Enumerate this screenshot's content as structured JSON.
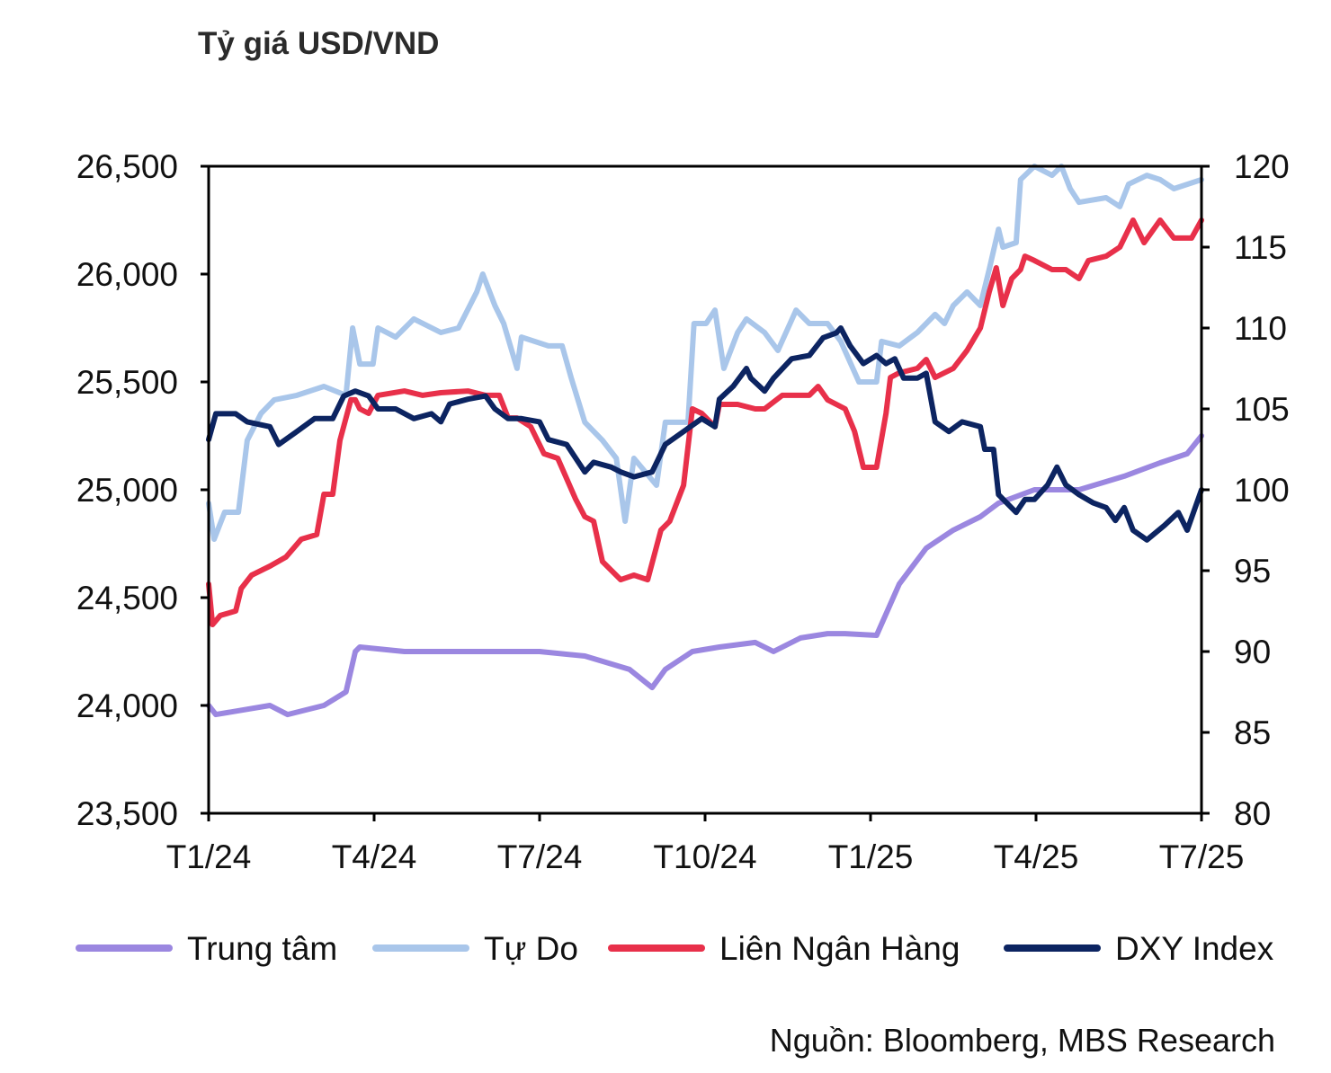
{
  "chart_data": {
    "type": "line",
    "title": "Tỷ giá USD/VND",
    "source": "Nguồn: Bloomberg, MBS Research",
    "x_unit": "months since T1/24",
    "x_ticks": [
      {
        "v": 0,
        "label": "T1/24"
      },
      {
        "v": 3,
        "label": "T4/24"
      },
      {
        "v": 6,
        "label": "T7/24"
      },
      {
        "v": 9,
        "label": "T10/24"
      },
      {
        "v": 12,
        "label": "T1/25"
      },
      {
        "v": 15,
        "label": "T4/25"
      },
      {
        "v": 18,
        "label": "T7/25"
      }
    ],
    "xlim": [
      0,
      18
    ],
    "y_left": {
      "ylim": [
        23500,
        26500
      ],
      "ticks": [
        {
          "v": 23500,
          "label": "23,500"
        },
        {
          "v": 24000,
          "label": "24,000"
        },
        {
          "v": 24500,
          "label": "24,500"
        },
        {
          "v": 25000,
          "label": "25,000"
        },
        {
          "v": 25500,
          "label": "25,500"
        },
        {
          "v": 26000,
          "label": "26,000"
        },
        {
          "v": 26500,
          "label": "26,500"
        }
      ]
    },
    "y_right": {
      "ylim": [
        80,
        120
      ],
      "ticks": [
        {
          "v": 80,
          "label": "80"
        },
        {
          "v": 85,
          "label": "85"
        },
        {
          "v": 90,
          "label": "90"
        },
        {
          "v": 95,
          "label": "95"
        },
        {
          "v": 100,
          "label": "100"
        },
        {
          "v": 105,
          "label": "105"
        },
        {
          "v": 110,
          "label": "110"
        },
        {
          "v": 115,
          "label": "115"
        },
        {
          "v": 120,
          "label": "120"
        }
      ]
    },
    "grid": false,
    "legend_position": "bottom",
    "series": [
      {
        "name": "Trung tâm",
        "axis": "left",
        "color": "#9b87e0",
        "points": [
          [
            0,
            24000
          ],
          [
            0.13,
            23958
          ],
          [
            1.11,
            24000
          ],
          [
            1.43,
            23958
          ],
          [
            2.09,
            24000
          ],
          [
            2.49,
            24063
          ],
          [
            2.66,
            24250
          ],
          [
            2.74,
            24271
          ],
          [
            3.55,
            24250
          ],
          [
            4.37,
            24250
          ],
          [
            6.0,
            24250
          ],
          [
            6.82,
            24229
          ],
          [
            7.63,
            24167
          ],
          [
            8.04,
            24083
          ],
          [
            8.28,
            24167
          ],
          [
            8.77,
            24250
          ],
          [
            9.26,
            24271
          ],
          [
            9.91,
            24292
          ],
          [
            10.24,
            24250
          ],
          [
            10.73,
            24313
          ],
          [
            11.22,
            24333
          ],
          [
            11.54,
            24333
          ],
          [
            12.11,
            24325
          ],
          [
            12.52,
            24563
          ],
          [
            13.01,
            24729
          ],
          [
            13.5,
            24813
          ],
          [
            13.99,
            24875
          ],
          [
            14.32,
            24938
          ],
          [
            14.97,
            25000
          ],
          [
            15.78,
            25000
          ],
          [
            16.6,
            25063
          ],
          [
            17.25,
            25125
          ],
          [
            17.74,
            25167
          ],
          [
            18,
            25250
          ]
        ]
      },
      {
        "name": "Tự Do",
        "axis": "left",
        "color": "#a9c6ea",
        "points": [
          [
            0,
            24937
          ],
          [
            0.1,
            24771
          ],
          [
            0.29,
            24896
          ],
          [
            0.54,
            24896
          ],
          [
            0.7,
            25229
          ],
          [
            0.95,
            25354
          ],
          [
            1.19,
            25417
          ],
          [
            1.6,
            25438
          ],
          [
            2.09,
            25479
          ],
          [
            2.49,
            25438
          ],
          [
            2.61,
            25750
          ],
          [
            2.74,
            25583
          ],
          [
            2.98,
            25583
          ],
          [
            3.07,
            25750
          ],
          [
            3.39,
            25708
          ],
          [
            3.72,
            25792
          ],
          [
            4.21,
            25729
          ],
          [
            4.53,
            25750
          ],
          [
            4.86,
            25917
          ],
          [
            4.97,
            26000
          ],
          [
            5.19,
            25854
          ],
          [
            5.35,
            25771
          ],
          [
            5.59,
            25563
          ],
          [
            5.67,
            25708
          ],
          [
            6.16,
            25667
          ],
          [
            6.41,
            25667
          ],
          [
            6.57,
            25521
          ],
          [
            6.82,
            25313
          ],
          [
            7.14,
            25229
          ],
          [
            7.39,
            25146
          ],
          [
            7.55,
            24854
          ],
          [
            7.71,
            25146
          ],
          [
            8.12,
            25021
          ],
          [
            8.28,
            25313
          ],
          [
            8.69,
            25313
          ],
          [
            8.8,
            25771
          ],
          [
            9.02,
            25771
          ],
          [
            9.18,
            25833
          ],
          [
            9.34,
            25563
          ],
          [
            9.59,
            25729
          ],
          [
            9.75,
            25792
          ],
          [
            10.08,
            25729
          ],
          [
            10.32,
            25646
          ],
          [
            10.65,
            25833
          ],
          [
            10.89,
            25771
          ],
          [
            11.22,
            25771
          ],
          [
            11.46,
            25688
          ],
          [
            11.79,
            25500
          ],
          [
            12.11,
            25500
          ],
          [
            12.2,
            25688
          ],
          [
            12.52,
            25667
          ],
          [
            12.85,
            25729
          ],
          [
            13.17,
            25813
          ],
          [
            13.34,
            25771
          ],
          [
            13.5,
            25854
          ],
          [
            13.75,
            25917
          ],
          [
            13.99,
            25854
          ],
          [
            14.15,
            26021
          ],
          [
            14.32,
            26208
          ],
          [
            14.4,
            26125
          ],
          [
            14.64,
            26146
          ],
          [
            14.72,
            26438
          ],
          [
            14.97,
            26500
          ],
          [
            15.29,
            26458
          ],
          [
            15.46,
            26500
          ],
          [
            15.62,
            26396
          ],
          [
            15.78,
            26333
          ],
          [
            16.27,
            26354
          ],
          [
            16.52,
            26313
          ],
          [
            16.68,
            26417
          ],
          [
            17.01,
            26458
          ],
          [
            17.25,
            26438
          ],
          [
            17.5,
            26396
          ],
          [
            18,
            26438
          ]
        ]
      },
      {
        "name": "Liên Ngân Hàng",
        "axis": "left",
        "color": "#e8304a",
        "points": [
          [
            0,
            24563
          ],
          [
            0.07,
            24375
          ],
          [
            0.21,
            24417
          ],
          [
            0.49,
            24438
          ],
          [
            0.59,
            24542
          ],
          [
            0.78,
            24604
          ],
          [
            1.11,
            24646
          ],
          [
            1.4,
            24688
          ],
          [
            1.68,
            24771
          ],
          [
            1.96,
            24792
          ],
          [
            2.09,
            24979
          ],
          [
            2.25,
            24979
          ],
          [
            2.38,
            25229
          ],
          [
            2.58,
            25417
          ],
          [
            2.66,
            25417
          ],
          [
            2.74,
            25375
          ],
          [
            2.9,
            25354
          ],
          [
            3.07,
            25438
          ],
          [
            3.55,
            25458
          ],
          [
            3.88,
            25438
          ],
          [
            4.21,
            25450
          ],
          [
            4.7,
            25458
          ],
          [
            5.02,
            25438
          ],
          [
            5.27,
            25438
          ],
          [
            5.43,
            25333
          ],
          [
            5.59,
            25333
          ],
          [
            5.84,
            25292
          ],
          [
            6.08,
            25167
          ],
          [
            6.33,
            25146
          ],
          [
            6.65,
            24958
          ],
          [
            6.82,
            24875
          ],
          [
            6.98,
            24854
          ],
          [
            7.14,
            24667
          ],
          [
            7.47,
            24583
          ],
          [
            7.71,
            24604
          ],
          [
            7.96,
            24583
          ],
          [
            8.2,
            24813
          ],
          [
            8.36,
            24854
          ],
          [
            8.61,
            25021
          ],
          [
            8.77,
            25375
          ],
          [
            8.94,
            25354
          ],
          [
            9.18,
            25292
          ],
          [
            9.26,
            25396
          ],
          [
            9.59,
            25396
          ],
          [
            9.91,
            25375
          ],
          [
            10.08,
            25375
          ],
          [
            10.4,
            25438
          ],
          [
            10.89,
            25438
          ],
          [
            11.05,
            25479
          ],
          [
            11.22,
            25417
          ],
          [
            11.54,
            25375
          ],
          [
            11.71,
            25271
          ],
          [
            11.87,
            25104
          ],
          [
            12.11,
            25104
          ],
          [
            12.28,
            25354
          ],
          [
            12.36,
            25521
          ],
          [
            12.52,
            25542
          ],
          [
            12.85,
            25563
          ],
          [
            13.01,
            25604
          ],
          [
            13.17,
            25521
          ],
          [
            13.5,
            25563
          ],
          [
            13.75,
            25646
          ],
          [
            13.99,
            25750
          ],
          [
            14.15,
            25917
          ],
          [
            14.28,
            26029
          ],
          [
            14.4,
            25854
          ],
          [
            14.56,
            25979
          ],
          [
            14.72,
            26021
          ],
          [
            14.8,
            26083
          ],
          [
            14.97,
            26063
          ],
          [
            15.29,
            26021
          ],
          [
            15.54,
            26021
          ],
          [
            15.78,
            25979
          ],
          [
            15.95,
            26063
          ],
          [
            16.27,
            26083
          ],
          [
            16.52,
            26125
          ],
          [
            16.76,
            26250
          ],
          [
            16.96,
            26146
          ],
          [
            17.25,
            26250
          ],
          [
            17.5,
            26167
          ],
          [
            17.82,
            26167
          ],
          [
            18,
            26250
          ]
        ]
      },
      {
        "name": "DXY Index",
        "axis": "right",
        "color": "#0c2461",
        "points": [
          [
            0,
            103.1
          ],
          [
            0.13,
            104.7
          ],
          [
            0.49,
            104.7
          ],
          [
            0.7,
            104.2
          ],
          [
            1.11,
            103.9
          ],
          [
            1.27,
            102.8
          ],
          [
            1.6,
            103.6
          ],
          [
            1.92,
            104.4
          ],
          [
            2.25,
            104.4
          ],
          [
            2.45,
            105.8
          ],
          [
            2.66,
            106.1
          ],
          [
            2.9,
            105.8
          ],
          [
            3.07,
            105.0
          ],
          [
            3.39,
            105.0
          ],
          [
            3.72,
            104.4
          ],
          [
            4.04,
            104.7
          ],
          [
            4.21,
            104.2
          ],
          [
            4.37,
            105.3
          ],
          [
            4.7,
            105.6
          ],
          [
            5.02,
            105.8
          ],
          [
            5.19,
            105.0
          ],
          [
            5.43,
            104.4
          ],
          [
            5.67,
            104.4
          ],
          [
            6.0,
            104.2
          ],
          [
            6.16,
            103.1
          ],
          [
            6.49,
            102.8
          ],
          [
            6.82,
            101.1
          ],
          [
            6.98,
            101.7
          ],
          [
            7.3,
            101.4
          ],
          [
            7.47,
            101.1
          ],
          [
            7.71,
            100.8
          ],
          [
            8.04,
            101.1
          ],
          [
            8.28,
            102.8
          ],
          [
            8.61,
            103.6
          ],
          [
            8.94,
            104.4
          ],
          [
            9.18,
            103.9
          ],
          [
            9.26,
            105.6
          ],
          [
            9.51,
            106.4
          ],
          [
            9.75,
            107.5
          ],
          [
            9.83,
            106.9
          ],
          [
            10.08,
            106.1
          ],
          [
            10.24,
            106.9
          ],
          [
            10.57,
            108.1
          ],
          [
            10.89,
            108.3
          ],
          [
            11.14,
            109.4
          ],
          [
            11.38,
            109.7
          ],
          [
            11.46,
            110.0
          ],
          [
            11.63,
            108.9
          ],
          [
            11.87,
            107.8
          ],
          [
            12.11,
            108.3
          ],
          [
            12.28,
            107.8
          ],
          [
            12.44,
            108.1
          ],
          [
            12.6,
            106.9
          ],
          [
            12.85,
            106.9
          ],
          [
            13.01,
            107.2
          ],
          [
            13.17,
            104.2
          ],
          [
            13.42,
            103.6
          ],
          [
            13.66,
            104.2
          ],
          [
            13.99,
            103.9
          ],
          [
            14.07,
            102.5
          ],
          [
            14.23,
            102.5
          ],
          [
            14.32,
            99.7
          ],
          [
            14.64,
            98.6
          ],
          [
            14.8,
            99.4
          ],
          [
            14.97,
            99.4
          ],
          [
            15.21,
            100.3
          ],
          [
            15.38,
            101.4
          ],
          [
            15.54,
            100.3
          ],
          [
            15.78,
            99.7
          ],
          [
            16.03,
            99.2
          ],
          [
            16.27,
            98.9
          ],
          [
            16.44,
            98.1
          ],
          [
            16.6,
            98.9
          ],
          [
            16.76,
            97.5
          ],
          [
            17.01,
            96.9
          ],
          [
            17.33,
            97.8
          ],
          [
            17.58,
            98.6
          ],
          [
            17.74,
            97.5
          ],
          [
            18,
            100.0
          ]
        ]
      }
    ]
  }
}
